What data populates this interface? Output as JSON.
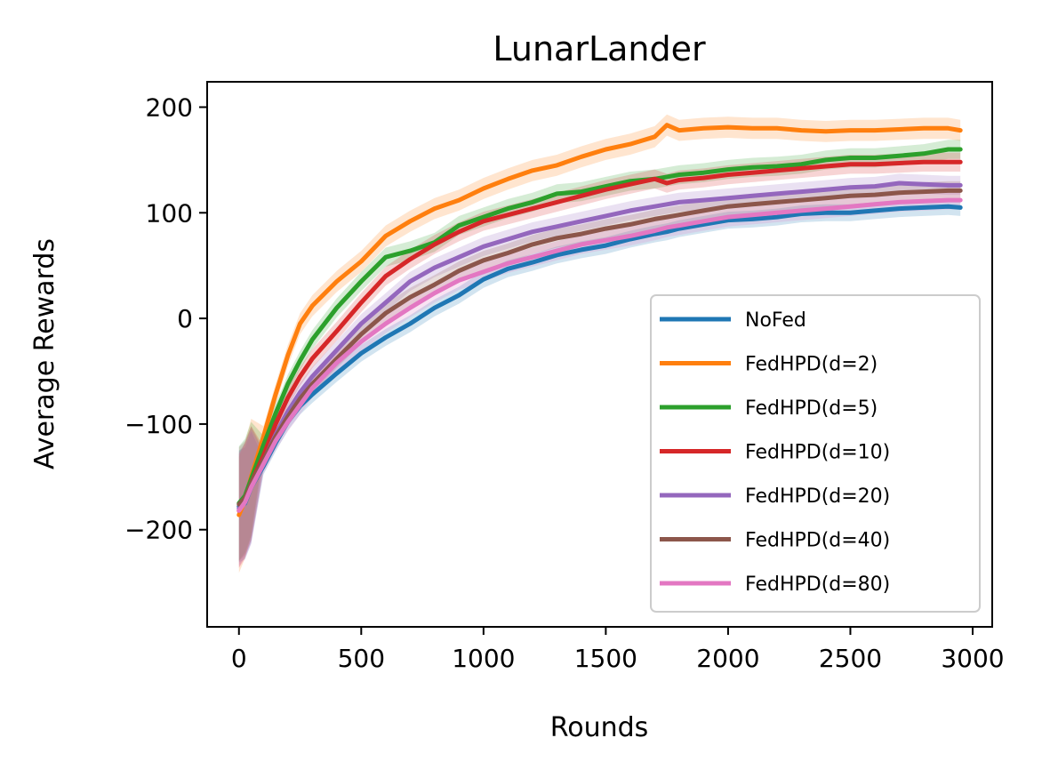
{
  "chart_data": {
    "type": "line",
    "title": "LunarLander",
    "xlabel": "Rounds",
    "ylabel": "Average Rewards",
    "xlim": [
      -130,
      3080
    ],
    "ylim": [
      -292,
      224
    ],
    "xticks": [
      0,
      500,
      1000,
      1500,
      2000,
      2500,
      3000
    ],
    "xtick_labels": [
      "0",
      "500",
      "1000",
      "1500",
      "2000",
      "2500",
      "3000"
    ],
    "yticks": [
      -200,
      -100,
      0,
      100,
      200
    ],
    "ytick_labels": [
      "−200",
      "−100",
      "0",
      "100",
      "200"
    ],
    "legend_position": "lower-right",
    "shaded_band": true,
    "x": [
      0,
      25,
      50,
      100,
      150,
      200,
      250,
      300,
      400,
      500,
      600,
      700,
      800,
      900,
      1000,
      1100,
      1200,
      1300,
      1400,
      1500,
      1600,
      1700,
      1750,
      1800,
      1900,
      2000,
      2100,
      2200,
      2300,
      2400,
      2500,
      2600,
      2700,
      2800,
      2900,
      2950
    ],
    "series": [
      {
        "name": "NoFed",
        "color": "#1f77b4",
        "band": 8,
        "values": [
          -178,
          -175,
          -160,
          -140,
          -118,
          -98,
          -83,
          -72,
          -52,
          -33,
          -18,
          -5,
          10,
          22,
          37,
          47,
          53,
          60,
          65,
          69,
          75,
          80,
          82,
          85,
          89,
          93,
          94,
          96,
          99,
          100,
          100,
          102,
          104,
          105,
          106,
          105
        ]
      },
      {
        "name": "FedHPD(d=2)",
        "color": "#ff7f0e",
        "band": 10,
        "values": [
          -186,
          -172,
          -150,
          -112,
          -72,
          -35,
          -5,
          12,
          35,
          54,
          78,
          92,
          104,
          112,
          123,
          132,
          140,
          145,
          153,
          160,
          165,
          172,
          183,
          178,
          180,
          181,
          180,
          180,
          178,
          177,
          178,
          178,
          179,
          180,
          180,
          178
        ]
      },
      {
        "name": "FedHPD(d=5)",
        "color": "#2ca02c",
        "band": 9,
        "values": [
          -175,
          -168,
          -152,
          -120,
          -90,
          -62,
          -40,
          -20,
          10,
          35,
          58,
          64,
          72,
          88,
          96,
          104,
          110,
          118,
          120,
          125,
          130,
          132,
          134,
          136,
          138,
          141,
          143,
          144,
          146,
          150,
          152,
          152,
          154,
          156,
          160,
          160
        ]
      },
      {
        "name": "FedHPD(d=10)",
        "color": "#d62728",
        "band": 9,
        "values": [
          -182,
          -172,
          -156,
          -130,
          -100,
          -75,
          -55,
          -38,
          -12,
          15,
          40,
          56,
          70,
          82,
          92,
          98,
          104,
          110,
          116,
          122,
          127,
          132,
          128,
          131,
          133,
          136,
          138,
          140,
          142,
          144,
          146,
          146,
          147,
          148,
          148,
          148
        ]
      },
      {
        "name": "FedHPD(d=20)",
        "color": "#9467bd",
        "band": 9,
        "values": [
          -180,
          -172,
          -158,
          -135,
          -110,
          -88,
          -70,
          -55,
          -30,
          -5,
          15,
          35,
          48,
          58,
          68,
          75,
          82,
          87,
          92,
          97,
          102,
          106,
          108,
          110,
          112,
          114,
          116,
          118,
          120,
          122,
          124,
          125,
          128,
          127,
          126,
          126
        ]
      },
      {
        "name": "FedHPD(d=40)",
        "color": "#8c564b",
        "band": 9,
        "values": [
          -176,
          -170,
          -156,
          -134,
          -112,
          -93,
          -76,
          -62,
          -38,
          -15,
          5,
          20,
          32,
          45,
          55,
          62,
          70,
          76,
          80,
          85,
          89,
          94,
          96,
          98,
          102,
          106,
          108,
          110,
          112,
          114,
          116,
          117,
          119,
          120,
          121,
          121
        ]
      },
      {
        "name": "FedHPD(d=80)",
        "color": "#e377c2",
        "band": 9,
        "values": [
          -182,
          -174,
          -160,
          -138,
          -116,
          -98,
          -82,
          -66,
          -42,
          -22,
          -5,
          10,
          24,
          36,
          44,
          52,
          58,
          64,
          70,
          74,
          78,
          83,
          86,
          88,
          92,
          96,
          98,
          100,
          102,
          104,
          106,
          108,
          110,
          111,
          112,
          112
        ]
      }
    ]
  }
}
